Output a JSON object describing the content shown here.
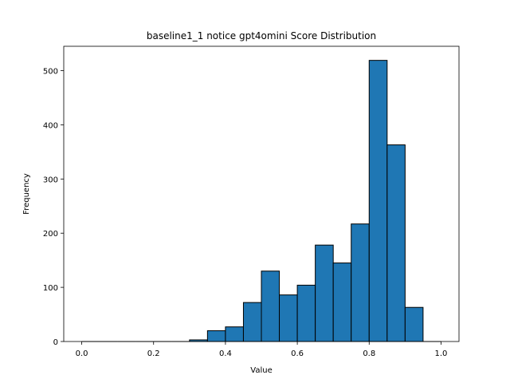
{
  "chart_data": {
    "type": "bar",
    "title": "baseline1_1 notice gpt4omini Score Distribution",
    "xlabel": "Value",
    "ylabel": "Frequency",
    "xlim": [
      -0.05,
      1.05
    ],
    "ylim": [
      0,
      545
    ],
    "xticks": [
      0.0,
      0.2,
      0.4,
      0.6,
      0.8,
      1.0
    ],
    "xtick_labels": [
      "0.0",
      "0.2",
      "0.4",
      "0.6",
      "0.8",
      "1.0"
    ],
    "yticks": [
      0,
      100,
      200,
      300,
      400,
      500
    ],
    "ytick_labels": [
      "0",
      "100",
      "200",
      "300",
      "400",
      "500"
    ],
    "bin_edges": [
      0.0,
      0.05,
      0.1,
      0.15,
      0.2,
      0.25,
      0.3,
      0.35,
      0.4,
      0.45,
      0.5,
      0.55,
      0.6,
      0.65,
      0.7,
      0.75,
      0.8,
      0.85,
      0.9,
      0.95,
      1.0
    ],
    "values": [
      0,
      0,
      0,
      0,
      0,
      0,
      3,
      20,
      27,
      72,
      130,
      86,
      104,
      178,
      145,
      217,
      519,
      363,
      63,
      0
    ],
    "bar_color": "#1f77b4",
    "edge_color": "#000000",
    "grid": false
  }
}
